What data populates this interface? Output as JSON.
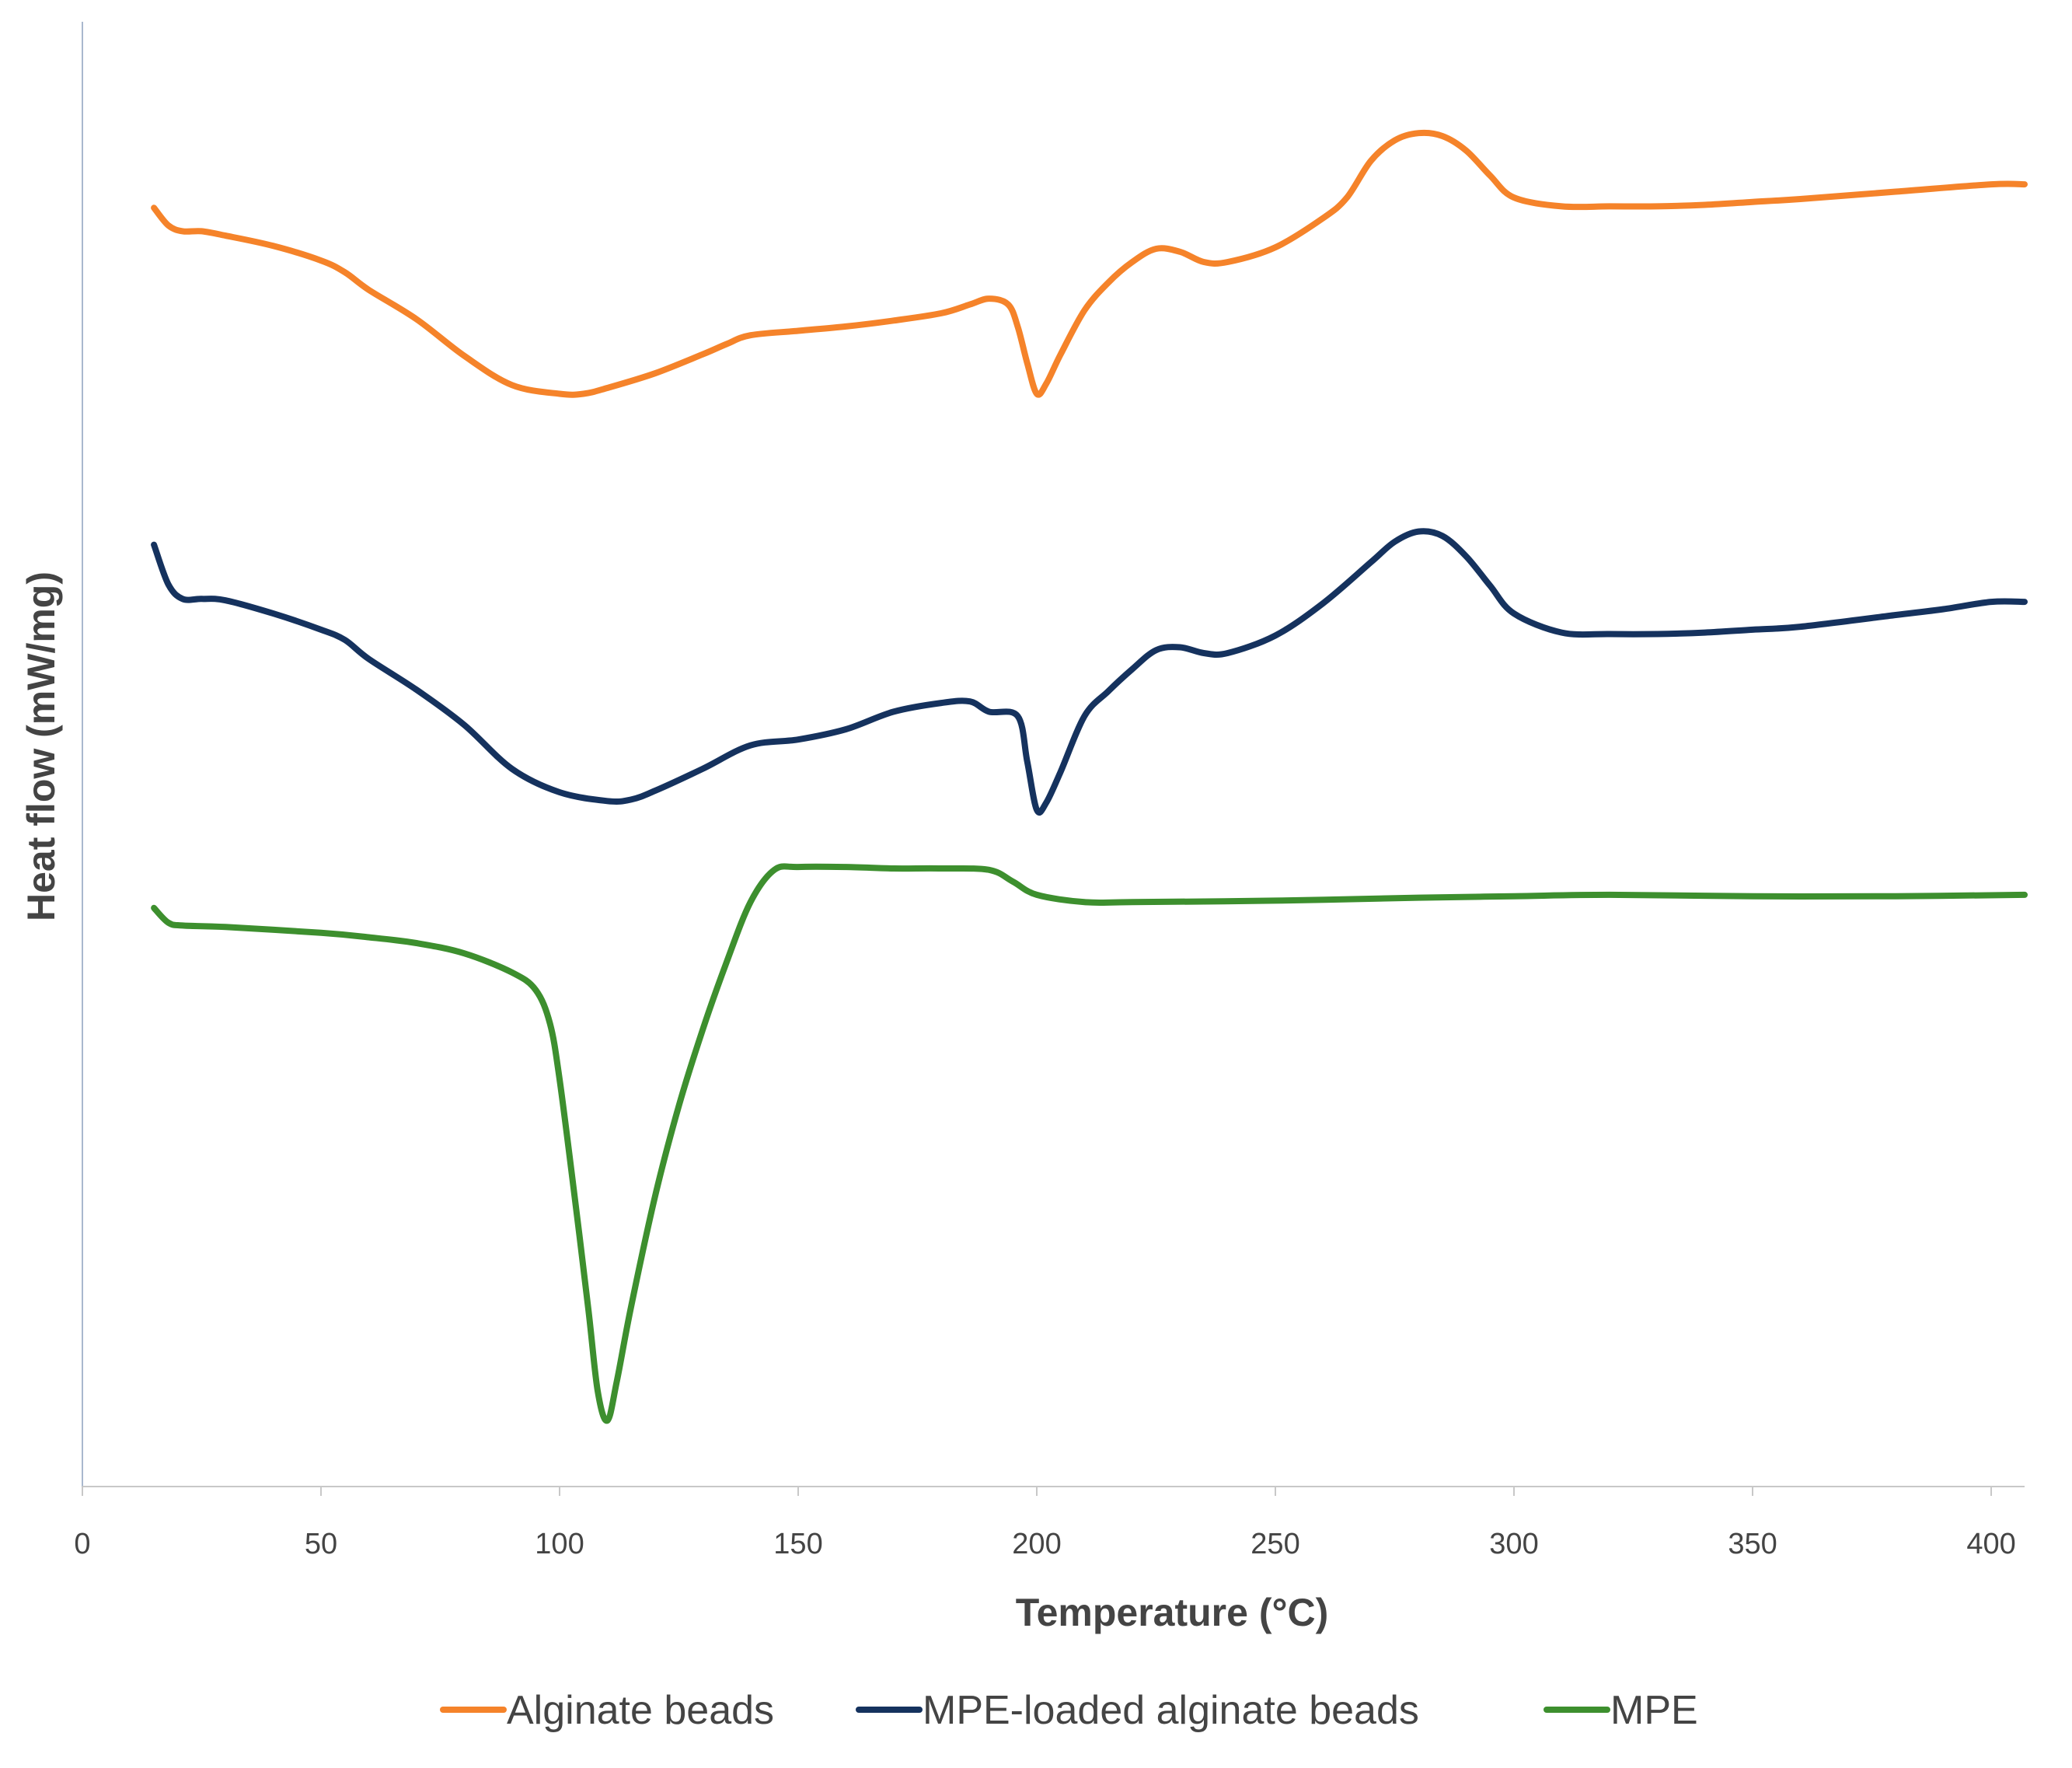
{
  "chart_data": {
    "type": "line",
    "title": "",
    "xlabel": "Temperature (°C)",
    "ylabel": "Heat flow (mW/mg)",
    "xlim": [
      0,
      407
    ],
    "ylim": [
      0,
      100
    ],
    "x_ticks": [
      0,
      50,
      100,
      150,
      200,
      250,
      300,
      350,
      400
    ],
    "grid": false,
    "y_tick_labels_shown": false,
    "legend_position": "bottom",
    "series": [
      {
        "name": "Alginate beads",
        "color": "#F5832A",
        "points": [
          [
            15,
            87.3
          ],
          [
            18,
            86.1
          ],
          [
            21,
            85.7
          ],
          [
            25,
            85.7
          ],
          [
            30,
            85.4
          ],
          [
            40,
            84.7
          ],
          [
            50,
            83.7
          ],
          [
            55,
            82.9
          ],
          [
            60,
            81.7
          ],
          [
            70,
            79.7
          ],
          [
            80,
            77.2
          ],
          [
            90,
            75.2
          ],
          [
            100,
            74.6
          ],
          [
            105,
            74.6
          ],
          [
            110,
            75.0
          ],
          [
            120,
            76.0
          ],
          [
            130,
            77.3
          ],
          [
            135,
            78.0
          ],
          [
            140,
            78.6
          ],
          [
            150,
            78.9
          ],
          [
            160,
            79.2
          ],
          [
            170,
            79.6
          ],
          [
            180,
            80.1
          ],
          [
            186,
            80.7
          ],
          [
            190,
            81.1
          ],
          [
            194,
            80.7
          ],
          [
            196,
            79.2
          ],
          [
            198,
            76.7
          ],
          [
            200,
            74.6
          ],
          [
            202,
            75.3
          ],
          [
            205,
            77.3
          ],
          [
            210,
            80.3
          ],
          [
            215,
            82.2
          ],
          [
            220,
            83.6
          ],
          [
            225,
            84.5
          ],
          [
            230,
            84.3
          ],
          [
            235,
            83.6
          ],
          [
            240,
            83.6
          ],
          [
            250,
            84.6
          ],
          [
            260,
            86.6
          ],
          [
            265,
            88.0
          ],
          [
            270,
            90.5
          ],
          [
            275,
            91.9
          ],
          [
            280,
            92.4
          ],
          [
            285,
            92.2
          ],
          [
            290,
            91.2
          ],
          [
            295,
            89.5
          ],
          [
            300,
            88.0
          ],
          [
            310,
            87.4
          ],
          [
            320,
            87.4
          ],
          [
            330,
            87.4
          ],
          [
            340,
            87.5
          ],
          [
            350,
            87.7
          ],
          [
            360,
            87.9
          ],
          [
            380,
            88.4
          ],
          [
            400,
            88.9
          ],
          [
            407,
            88.9
          ]
        ]
      },
      {
        "name": "MPE-loaded alginate beads",
        "color": "#15325E",
        "points": [
          [
            15,
            64.3
          ],
          [
            18,
            61.6
          ],
          [
            21,
            60.6
          ],
          [
            25,
            60.6
          ],
          [
            30,
            60.5
          ],
          [
            40,
            59.6
          ],
          [
            50,
            58.5
          ],
          [
            55,
            57.8
          ],
          [
            60,
            56.5
          ],
          [
            70,
            54.4
          ],
          [
            80,
            52.0
          ],
          [
            90,
            49.0
          ],
          [
            100,
            47.4
          ],
          [
            110,
            46.8
          ],
          [
            115,
            46.9
          ],
          [
            120,
            47.5
          ],
          [
            130,
            49.0
          ],
          [
            140,
            50.6
          ],
          [
            150,
            51.0
          ],
          [
            160,
            51.7
          ],
          [
            170,
            52.9
          ],
          [
            180,
            53.5
          ],
          [
            186,
            53.6
          ],
          [
            190,
            52.9
          ],
          [
            196,
            52.6
          ],
          [
            198,
            49.5
          ],
          [
            200,
            46.2
          ],
          [
            202,
            46.7
          ],
          [
            205,
            48.8
          ],
          [
            210,
            52.6
          ],
          [
            215,
            54.3
          ],
          [
            220,
            55.8
          ],
          [
            225,
            57.1
          ],
          [
            230,
            57.3
          ],
          [
            235,
            56.9
          ],
          [
            240,
            56.9
          ],
          [
            250,
            58.1
          ],
          [
            260,
            60.3
          ],
          [
            270,
            63.1
          ],
          [
            275,
            64.5
          ],
          [
            280,
            65.2
          ],
          [
            285,
            64.9
          ],
          [
            290,
            63.5
          ],
          [
            295,
            61.5
          ],
          [
            300,
            59.6
          ],
          [
            310,
            58.3
          ],
          [
            320,
            58.2
          ],
          [
            330,
            58.2
          ],
          [
            340,
            58.3
          ],
          [
            350,
            58.5
          ],
          [
            360,
            58.7
          ],
          [
            380,
            59.5
          ],
          [
            390,
            59.9
          ],
          [
            400,
            60.4
          ],
          [
            407,
            60.4
          ]
        ]
      },
      {
        "name": "MPE",
        "color": "#3D8F2E",
        "points": [
          [
            15,
            39.5
          ],
          [
            18,
            38.5
          ],
          [
            21,
            38.3
          ],
          [
            30,
            38.2
          ],
          [
            50,
            37.8
          ],
          [
            60,
            37.5
          ],
          [
            70,
            37.1
          ],
          [
            80,
            36.4
          ],
          [
            90,
            35.1
          ],
          [
            95,
            33.9
          ],
          [
            98,
            31.6
          ],
          [
            100,
            27.8
          ],
          [
            103,
            20.2
          ],
          [
            106,
            12.2
          ],
          [
            108,
            6.5
          ],
          [
            110,
            4.5
          ],
          [
            112,
            7.2
          ],
          [
            115,
            12.3
          ],
          [
            120,
            19.8
          ],
          [
            125,
            26.0
          ],
          [
            130,
            31.2
          ],
          [
            135,
            35.8
          ],
          [
            140,
            39.9
          ],
          [
            145,
            42.1
          ],
          [
            150,
            42.3
          ],
          [
            160,
            42.3
          ],
          [
            170,
            42.2
          ],
          [
            180,
            42.2
          ],
          [
            190,
            42.1
          ],
          [
            195,
            41.3
          ],
          [
            200,
            40.4
          ],
          [
            210,
            39.9
          ],
          [
            220,
            39.9
          ],
          [
            250,
            40.0
          ],
          [
            280,
            40.2
          ],
          [
            300,
            40.3
          ],
          [
            320,
            40.4
          ],
          [
            350,
            40.3
          ],
          [
            380,
            40.3
          ],
          [
            407,
            40.4
          ]
        ]
      }
    ]
  }
}
